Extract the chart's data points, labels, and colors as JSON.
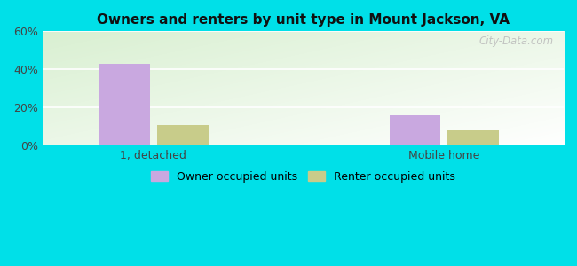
{
  "title": "Owners and renters by unit type in Mount Jackson, VA",
  "categories": [
    "1, detached",
    "Mobile home"
  ],
  "owner_values": [
    43,
    16
  ],
  "renter_values": [
    11,
    8
  ],
  "owner_color": "#c9a8e0",
  "renter_color": "#c8cc8a",
  "ylim": [
    0,
    60
  ],
  "yticks": [
    0,
    20,
    40,
    60
  ],
  "ytick_labels": [
    "0%",
    "20%",
    "40%",
    "60%"
  ],
  "background_outer": "#00e0e8",
  "legend_owner": "Owner occupied units",
  "legend_renter": "Renter occupied units",
  "bar_width": 0.3,
  "group_positions": [
    1.0,
    2.7
  ],
  "xlim": [
    0.35,
    3.4
  ],
  "watermark": "City-Data.com"
}
